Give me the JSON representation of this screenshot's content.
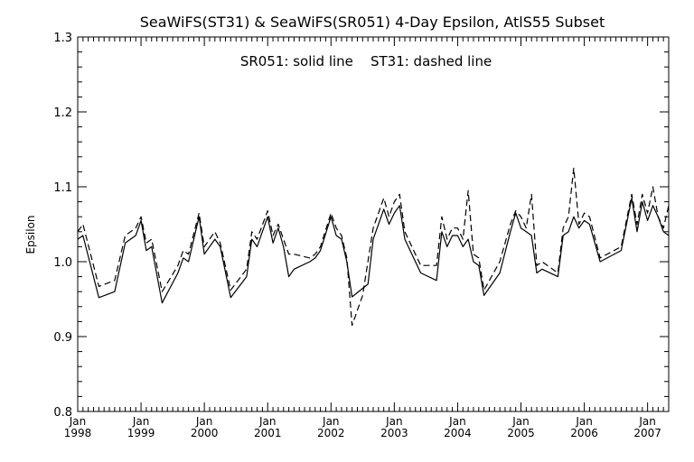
{
  "chart_data": {
    "type": "line",
    "title": "SeaWiFS(ST31) & SeaWiFS(SR051) 4-Day Epsilon, AtlS55 Subset",
    "annotation": "SR051: solid line    ST31: dashed line",
    "xlabel": "",
    "ylabel": "Epsilon",
    "xlim": [
      "1998-01",
      "2007-05"
    ],
    "ylim": [
      0.8,
      1.3
    ],
    "yticks": [
      "0.8",
      "0.9",
      "1.0",
      "1.1",
      "1.2",
      "1.3"
    ],
    "xticks": [
      {
        "month": "Jan",
        "year": "1998",
        "date": "1998-01"
      },
      {
        "month": "Jan",
        "year": "1999",
        "date": "1999-01"
      },
      {
        "month": "Jan",
        "year": "2000",
        "date": "2000-01"
      },
      {
        "month": "Jan",
        "year": "2001",
        "date": "2001-01"
      },
      {
        "month": "Jan",
        "year": "2002",
        "date": "2002-01"
      },
      {
        "month": "Jan",
        "year": "2003",
        "date": "2003-01"
      },
      {
        "month": "Jan",
        "year": "2004",
        "date": "2004-01"
      },
      {
        "month": "Jan",
        "year": "2005",
        "date": "2005-01"
      },
      {
        "month": "Jan",
        "year": "2006",
        "date": "2006-01"
      },
      {
        "month": "Jan",
        "year": "2007",
        "date": "2007-01"
      }
    ],
    "grid": false,
    "legend": "none",
    "series": [
      {
        "style": "solid",
        "points": [
          [
            "1998-01",
            1.03
          ],
          [
            "1998-02",
            1.035
          ],
          [
            "1998-05",
            0.952
          ],
          [
            "1998-08",
            0.96
          ],
          [
            "1998-10",
            1.025
          ],
          [
            "1998-12",
            1.035
          ],
          [
            "1999-01",
            1.055
          ],
          [
            "1999-02",
            1.015
          ],
          [
            "1999-03",
            1.02
          ],
          [
            "1999-05",
            0.945
          ],
          [
            "1999-08",
            0.985
          ],
          [
            "1999-09",
            1.005
          ],
          [
            "1999-10",
            1.0
          ],
          [
            "1999-12",
            1.06
          ],
          [
            "2000-01",
            1.01
          ],
          [
            "2000-03",
            1.03
          ],
          [
            "2000-04",
            1.02
          ],
          [
            "2000-06",
            0.952
          ],
          [
            "2000-09",
            0.98
          ],
          [
            "2000-10",
            1.03
          ],
          [
            "2000-11",
            1.02
          ],
          [
            "2001-01",
            1.06
          ],
          [
            "2001-02",
            1.025
          ],
          [
            "2001-03",
            1.045
          ],
          [
            "2001-04",
            1.02
          ],
          [
            "2001-05",
            0.98
          ],
          [
            "2001-06",
            0.99
          ],
          [
            "2001-09",
            1.0
          ],
          [
            "2001-10",
            1.005
          ],
          [
            "2001-11",
            1.015
          ],
          [
            "2002-01",
            1.06
          ],
          [
            "2002-02",
            1.035
          ],
          [
            "2002-03",
            1.03
          ],
          [
            "2002-04",
            1.0
          ],
          [
            "2002-05",
            0.953
          ],
          [
            "2002-08",
            0.97
          ],
          [
            "2002-09",
            1.03
          ],
          [
            "2002-11",
            1.07
          ],
          [
            "2002-12",
            1.05
          ],
          [
            "2003-01",
            1.065
          ],
          [
            "2003-02",
            1.075
          ],
          [
            "2003-03",
            1.03
          ],
          [
            "2003-06",
            0.985
          ],
          [
            "2003-09",
            0.975
          ],
          [
            "2003-10",
            1.04
          ],
          [
            "2003-11",
            1.02
          ],
          [
            "2003-12",
            1.035
          ],
          [
            "2004-01",
            1.035
          ],
          [
            "2004-02",
            1.02
          ],
          [
            "2004-03",
            1.03
          ],
          [
            "2004-04",
            1.0
          ],
          [
            "2004-05",
            0.995
          ],
          [
            "2004-06",
            0.955
          ],
          [
            "2004-09",
            0.985
          ],
          [
            "2004-11",
            1.04
          ],
          [
            "2004-12",
            1.065
          ],
          [
            "2005-01",
            1.045
          ],
          [
            "2005-02",
            1.04
          ],
          [
            "2005-03",
            1.035
          ],
          [
            "2005-04",
            0.985
          ],
          [
            "2005-05",
            0.99
          ],
          [
            "2005-08",
            0.98
          ],
          [
            "2005-09",
            1.035
          ],
          [
            "2005-10",
            1.04
          ],
          [
            "2005-11",
            1.06
          ],
          [
            "2005-12",
            1.045
          ],
          [
            "2006-01",
            1.055
          ],
          [
            "2006-02",
            1.05
          ],
          [
            "2006-04",
            1.0
          ],
          [
            "2006-08",
            1.015
          ],
          [
            "2006-10",
            1.085
          ],
          [
            "2006-11",
            1.04
          ],
          [
            "2006-12",
            1.08
          ],
          [
            "2007-01",
            1.055
          ],
          [
            "2007-02",
            1.075
          ],
          [
            "2007-03",
            1.06
          ],
          [
            "2007-04",
            1.04
          ],
          [
            "2007-05",
            1.035
          ]
        ]
      },
      {
        "style": "dashed",
        "points": [
          [
            "1998-01",
            1.04
          ],
          [
            "1998-02",
            1.05
          ],
          [
            "1998-05",
            0.967
          ],
          [
            "1998-08",
            0.975
          ],
          [
            "1998-10",
            1.035
          ],
          [
            "1998-12",
            1.045
          ],
          [
            "1999-01",
            1.06
          ],
          [
            "1999-02",
            1.025
          ],
          [
            "1999-03",
            1.03
          ],
          [
            "1999-05",
            0.96
          ],
          [
            "1999-08",
            0.995
          ],
          [
            "1999-09",
            1.015
          ],
          [
            "1999-10",
            1.01
          ],
          [
            "1999-12",
            1.065
          ],
          [
            "2000-01",
            1.02
          ],
          [
            "2000-03",
            1.04
          ],
          [
            "2000-04",
            1.025
          ],
          [
            "2000-06",
            0.962
          ],
          [
            "2000-09",
            0.99
          ],
          [
            "2000-10",
            1.04
          ],
          [
            "2000-11",
            1.03
          ],
          [
            "2001-01",
            1.068
          ],
          [
            "2001-02",
            1.035
          ],
          [
            "2001-03",
            1.05
          ],
          [
            "2001-04",
            1.03
          ],
          [
            "2001-05",
            1.01
          ],
          [
            "2001-06",
            1.01
          ],
          [
            "2001-09",
            1.005
          ],
          [
            "2001-10",
            1.01
          ],
          [
            "2001-11",
            1.02
          ],
          [
            "2002-01",
            1.065
          ],
          [
            "2002-02",
            1.045
          ],
          [
            "2002-03",
            1.035
          ],
          [
            "2002-04",
            1.005
          ],
          [
            "2002-05",
            0.915
          ],
          [
            "2002-07",
            0.955
          ],
          [
            "2002-09",
            1.045
          ],
          [
            "2002-11",
            1.085
          ],
          [
            "2002-12",
            1.06
          ],
          [
            "2003-01",
            1.08
          ],
          [
            "2003-02",
            1.09
          ],
          [
            "2003-03",
            1.04
          ],
          [
            "2003-06",
            0.995
          ],
          [
            "2003-09",
            0.995
          ],
          [
            "2003-10",
            1.06
          ],
          [
            "2003-11",
            1.03
          ],
          [
            "2003-12",
            1.045
          ],
          [
            "2004-01",
            1.045
          ],
          [
            "2004-02",
            1.03
          ],
          [
            "2004-03",
            1.095
          ],
          [
            "2004-04",
            1.01
          ],
          [
            "2004-05",
            1.005
          ],
          [
            "2004-06",
            0.962
          ],
          [
            "2004-09",
            1.0
          ],
          [
            "2004-11",
            1.05
          ],
          [
            "2004-12",
            1.068
          ],
          [
            "2005-01",
            1.06
          ],
          [
            "2005-02",
            1.045
          ],
          [
            "2005-03",
            1.09
          ],
          [
            "2005-04",
            0.995
          ],
          [
            "2005-05",
            1.0
          ],
          [
            "2005-08",
            0.985
          ],
          [
            "2005-09",
            1.045
          ],
          [
            "2005-10",
            1.06
          ],
          [
            "2005-11",
            1.125
          ],
          [
            "2005-12",
            1.05
          ],
          [
            "2006-01",
            1.065
          ],
          [
            "2006-02",
            1.06
          ],
          [
            "2006-04",
            1.005
          ],
          [
            "2006-08",
            1.02
          ],
          [
            "2006-10",
            1.09
          ],
          [
            "2006-11",
            1.05
          ],
          [
            "2006-12",
            1.09
          ],
          [
            "2007-01",
            1.065
          ],
          [
            "2007-02",
            1.1
          ],
          [
            "2007-03",
            1.06
          ],
          [
            "2007-04",
            1.045
          ],
          [
            "2007-05",
            1.075
          ]
        ]
      }
    ]
  }
}
